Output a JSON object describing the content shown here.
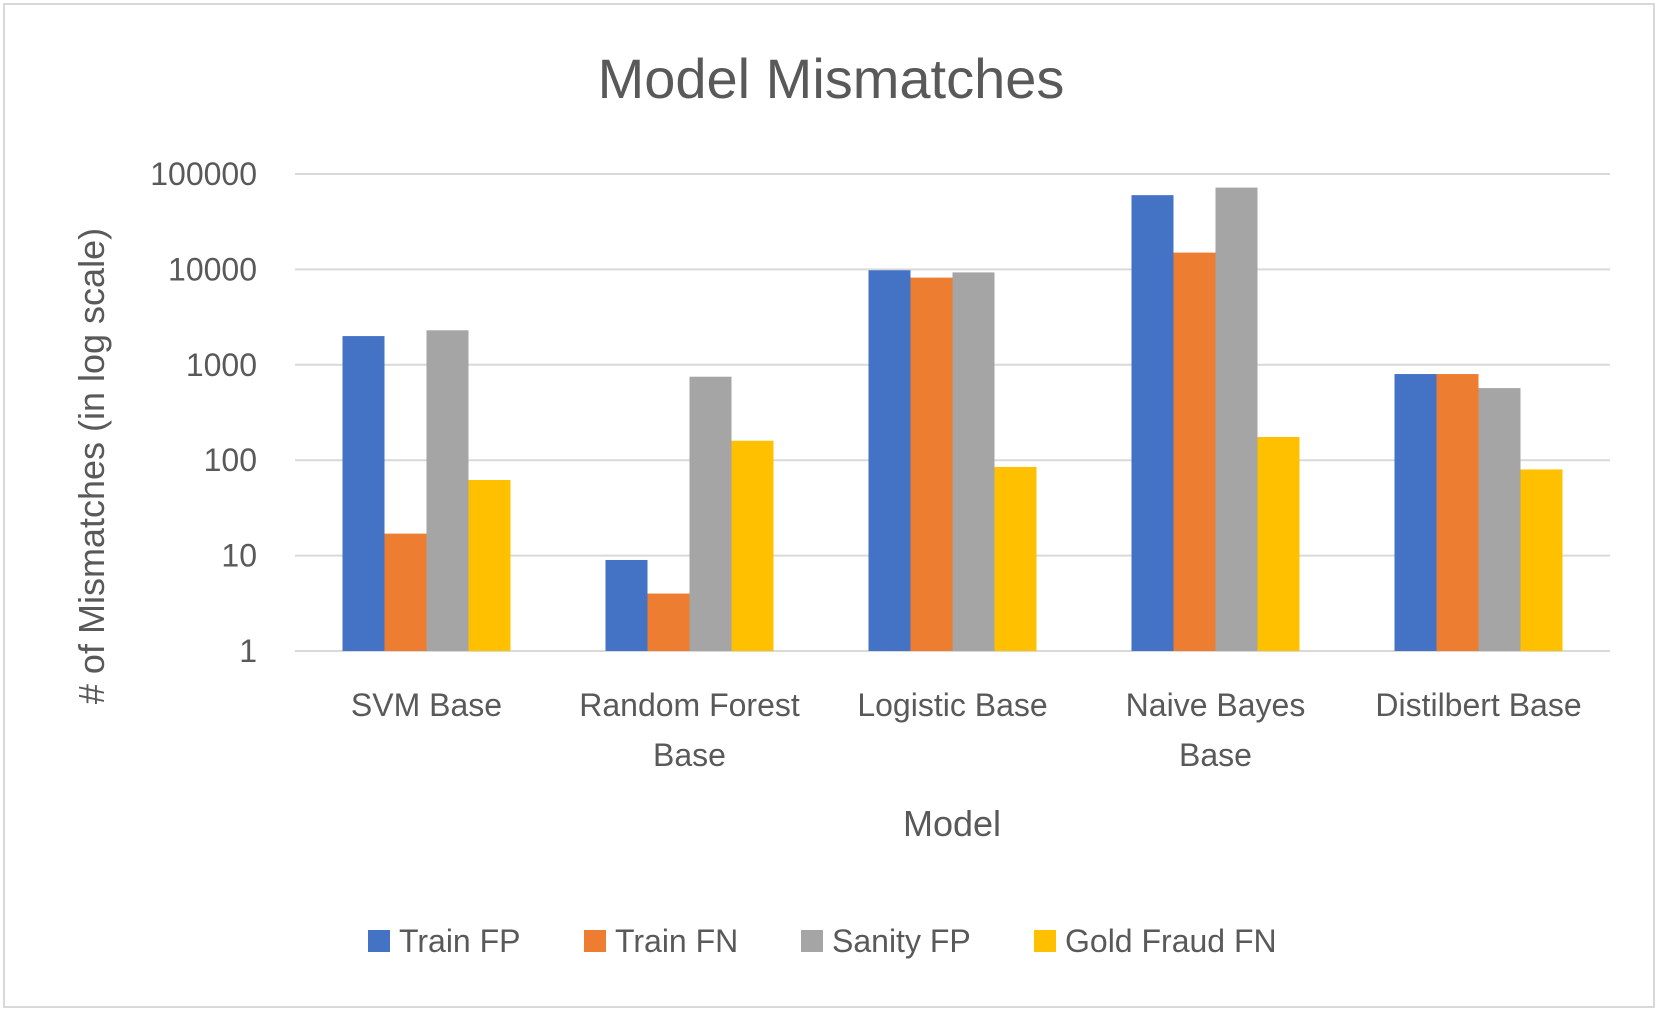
{
  "chart_data": {
    "type": "bar",
    "title": "Model Mismatches",
    "xlabel": "Model",
    "ylabel": "# of Mismatches (in log scale)",
    "yscale": "log",
    "ylim": [
      1,
      100000
    ],
    "yticks": [
      "1",
      "10",
      "100",
      "1000",
      "10000",
      "100000"
    ],
    "grid": true,
    "legend_position": "bottom",
    "categories": [
      [
        "SVM Base"
      ],
      [
        "Random Forest",
        "Base"
      ],
      [
        "Logistic Base"
      ],
      [
        "Naive Bayes",
        "Base"
      ],
      [
        "Distilbert Base"
      ]
    ],
    "series": [
      {
        "name": "Train FP",
        "color": "#4472c4",
        "values": [
          2000,
          9,
          9800,
          60000,
          800
        ]
      },
      {
        "name": "Train FN",
        "color": "#ed7d31",
        "values": [
          17,
          4,
          8200,
          15000,
          800
        ]
      },
      {
        "name": "Sanity FP",
        "color": "#a5a5a5",
        "values": [
          2300,
          750,
          9300,
          72000,
          570
        ]
      },
      {
        "name": "Gold Fraud FN",
        "color": "#ffc000",
        "values": [
          62,
          160,
          85,
          175,
          80
        ]
      }
    ]
  }
}
